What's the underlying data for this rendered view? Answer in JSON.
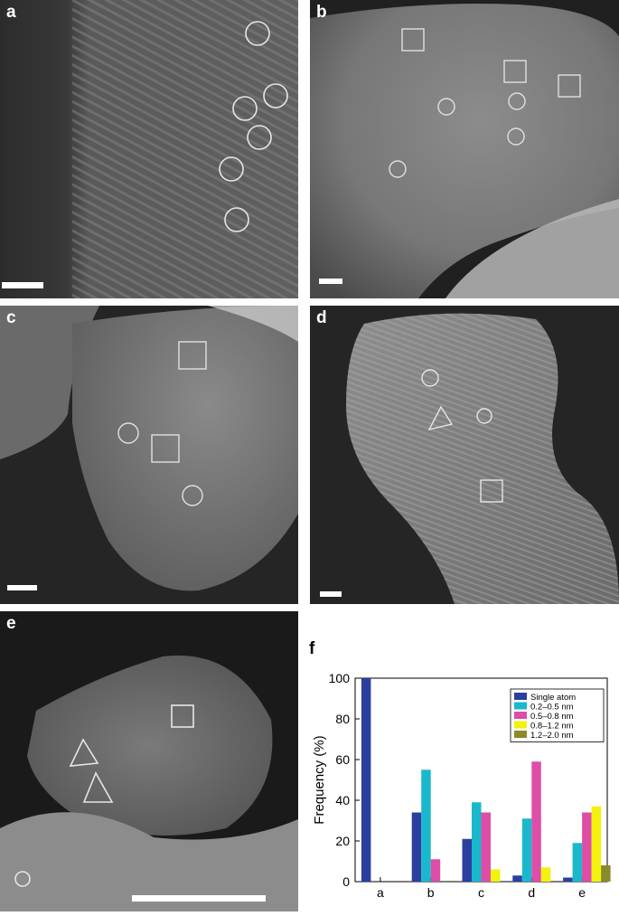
{
  "panels": {
    "a": {
      "label": "a"
    },
    "b": {
      "label": "b"
    },
    "c": {
      "label": "c"
    },
    "d": {
      "label": "d"
    },
    "e": {
      "label": "e"
    },
    "f": {
      "label": "f"
    }
  },
  "colors": {
    "single_atom": "#2b3f9e",
    "range_0_2_0_5": "#1ab8cc",
    "range_0_5_0_8": "#dd4ea7",
    "range_0_8_1_2": "#f2f20d",
    "range_1_2_2_0": "#8a8a2a"
  },
  "chart_data": {
    "type": "bar",
    "categories": [
      "a",
      "b",
      "c",
      "d",
      "e"
    ],
    "series": [
      {
        "name": "Single atom",
        "values": [
          100,
          34,
          21,
          3,
          2
        ]
      },
      {
        "name": "0.2–0.5 nm",
        "values": [
          0,
          55,
          39,
          31,
          19
        ]
      },
      {
        "name": "0.5–0.8 nm",
        "values": [
          0,
          11,
          34,
          59,
          34
        ]
      },
      {
        "name": "0.8–1.2 nm",
        "values": [
          0,
          0,
          6,
          7,
          37
        ]
      },
      {
        "name": "1.2–2.0 nm",
        "values": [
          0,
          0,
          0,
          0,
          8
        ]
      }
    ],
    "ylabel": "Frequency (%)",
    "xlabel": "",
    "ylim": [
      0,
      100
    ],
    "yticks": [
      0,
      20,
      40,
      60,
      80,
      100
    ],
    "legend_position": "top-right",
    "grid": false
  }
}
